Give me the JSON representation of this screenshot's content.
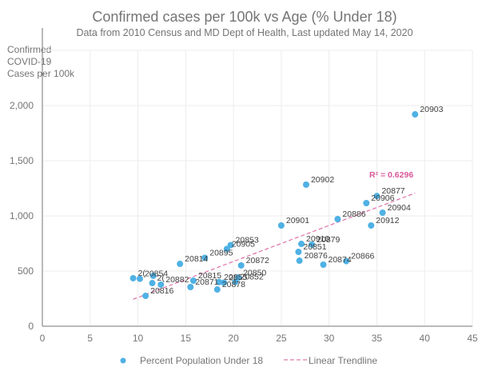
{
  "chart_data": {
    "type": "scatter",
    "title": "Confirmed cases per 100k vs Age (% Under 18)",
    "subtitle": "Data from 2010 Census and MD Dept of Health, Last updated May 14, 2020",
    "ylabel_lines": [
      "Confirmed",
      "COVID-19",
      "Cases per 100k"
    ],
    "xlabel": "",
    "xlim": [
      0,
      45
    ],
    "ylim": [
      0,
      2500
    ],
    "x_ticks": [
      0,
      5,
      10,
      15,
      20,
      25,
      30,
      35,
      40,
      45
    ],
    "x_tick_labels": [
      "0",
      "5",
      "10",
      "15",
      "20",
      "25",
      "30",
      "35",
      "40",
      "45"
    ],
    "y_ticks": [
      0,
      500,
      1000,
      1500,
      2000
    ],
    "y_tick_labels": [
      "0",
      "500",
      "1,000",
      "1,500",
      "2,000"
    ],
    "grid": true,
    "colors": {
      "points": "#4fb1e4",
      "trendline": "#d8589a",
      "text": "#757575",
      "axis": "#767676",
      "grid": "#ececec"
    },
    "series": [
      {
        "name": "Percent Population Under 18",
        "points": [
          {
            "x": 9.5,
            "y": 435,
            "label": "2("
          },
          {
            "x": 10.2,
            "y": 430,
            "label": "20854"
          },
          {
            "x": 11.6,
            "y": 457,
            "label": ""
          },
          {
            "x": 10.8,
            "y": 275,
            "label": "20816"
          },
          {
            "x": 11.5,
            "y": 391,
            "label": "2("
          },
          {
            "x": 12.4,
            "y": 377,
            "label": "20882"
          },
          {
            "x": 14.4,
            "y": 565,
            "label": "20814"
          },
          {
            "x": 15.8,
            "y": 413,
            "label": "20815"
          },
          {
            "x": 15.5,
            "y": 355,
            "label": "20871"
          },
          {
            "x": 17.0,
            "y": 620,
            "label": "20895"
          },
          {
            "x": 19.3,
            "y": 700,
            "label": "20905"
          },
          {
            "x": 19.7,
            "y": 735,
            "label": "20853"
          },
          {
            "x": 18.3,
            "y": 333,
            "label": "20878"
          },
          {
            "x": 20.8,
            "y": 551,
            "label": "20872"
          },
          {
            "x": 18.5,
            "y": 400,
            "label": "20855"
          },
          {
            "x": 19.0,
            "y": 395,
            "label": "2("
          },
          {
            "x": 20.2,
            "y": 402,
            "label": "20852"
          },
          {
            "x": 20.5,
            "y": 440,
            "label": "20850"
          },
          {
            "x": 25.0,
            "y": 913,
            "label": "20901"
          },
          {
            "x": 27.6,
            "y": 1283,
            "label": "20902"
          },
          {
            "x": 27.1,
            "y": 746,
            "label": "20910"
          },
          {
            "x": 28.2,
            "y": 740,
            "label": "20879"
          },
          {
            "x": 26.8,
            "y": 674,
            "label": "20851"
          },
          {
            "x": 26.9,
            "y": 594,
            "label": "20876"
          },
          {
            "x": 29.4,
            "y": 558,
            "label": "20874"
          },
          {
            "x": 31.8,
            "y": 590,
            "label": "20866"
          },
          {
            "x": 30.9,
            "y": 971,
            "label": "20886"
          },
          {
            "x": 33.9,
            "y": 1116,
            "label": "20906"
          },
          {
            "x": 35.0,
            "y": 1180,
            "label": "20877"
          },
          {
            "x": 35.6,
            "y": 1029,
            "label": "20904"
          },
          {
            "x": 34.4,
            "y": 913,
            "label": "20912"
          },
          {
            "x": 39.0,
            "y": 1920,
            "label": "20903"
          }
        ]
      }
    ],
    "trendline": {
      "name": "Linear Trendline",
      "x_range": [
        9.5,
        39.0
      ],
      "slope": 32.6,
      "intercept": -65,
      "r_squared_label": "R² = 0.6296"
    },
    "legend": {
      "placement": "bottom",
      "entries": [
        "Percent Population Under 18",
        "Linear Trendline"
      ]
    }
  }
}
